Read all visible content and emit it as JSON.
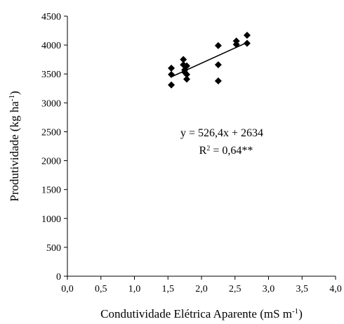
{
  "chart_data": {
    "type": "scatter",
    "xlabel": "Condutividade Elétrica Aparente (mS m",
    "xlabel_sup": "-1",
    "xlabel_end": ")",
    "ylabel": "Produtividade (kg ha",
    "ylabel_sup": "-1",
    "ylabel_end": ")",
    "xlim": [
      0,
      4.0
    ],
    "ylim": [
      0,
      4500
    ],
    "x_ticks": [
      0,
      0.5,
      1.0,
      1.5,
      2.0,
      2.5,
      3.0,
      3.5,
      4.0
    ],
    "x_tick_labels": [
      "0,0",
      "0,5",
      "1,0",
      "1,5",
      "2,0",
      "2,5",
      "3,0",
      "3,5",
      "4,0"
    ],
    "y_ticks": [
      0,
      500,
      1000,
      1500,
      2000,
      2500,
      3000,
      3500,
      4000,
      4500
    ],
    "y_tick_labels": [
      "0",
      "500",
      "1000",
      "1500",
      "2000",
      "2500",
      "3000",
      "3500",
      "4000",
      "4500"
    ],
    "grid": false,
    "points": [
      {
        "x": 1.55,
        "y": 3600
      },
      {
        "x": 1.55,
        "y": 3490
      },
      {
        "x": 1.55,
        "y": 3310
      },
      {
        "x": 1.73,
        "y": 3750
      },
      {
        "x": 1.73,
        "y": 3660
      },
      {
        "x": 1.75,
        "y": 3570
      },
      {
        "x": 1.75,
        "y": 3530
      },
      {
        "x": 1.78,
        "y": 3640
      },
      {
        "x": 1.78,
        "y": 3490
      },
      {
        "x": 1.78,
        "y": 3410
      },
      {
        "x": 2.25,
        "y": 3990
      },
      {
        "x": 2.25,
        "y": 3660
      },
      {
        "x": 2.25,
        "y": 3380
      },
      {
        "x": 2.52,
        "y": 4070
      },
      {
        "x": 2.52,
        "y": 4010
      },
      {
        "x": 2.68,
        "y": 4170
      },
      {
        "x": 2.68,
        "y": 4030
      }
    ],
    "trendline": {
      "slope": 526.4,
      "intercept": 2634,
      "x_range": [
        1.55,
        2.68
      ]
    },
    "annotations": {
      "equation": "y = 526,4x + 2634",
      "r2_label": "R",
      "r2_sup": "2",
      "r2_value": " = 0,64**"
    },
    "marker_color": "#000000",
    "line_color": "#000000"
  }
}
